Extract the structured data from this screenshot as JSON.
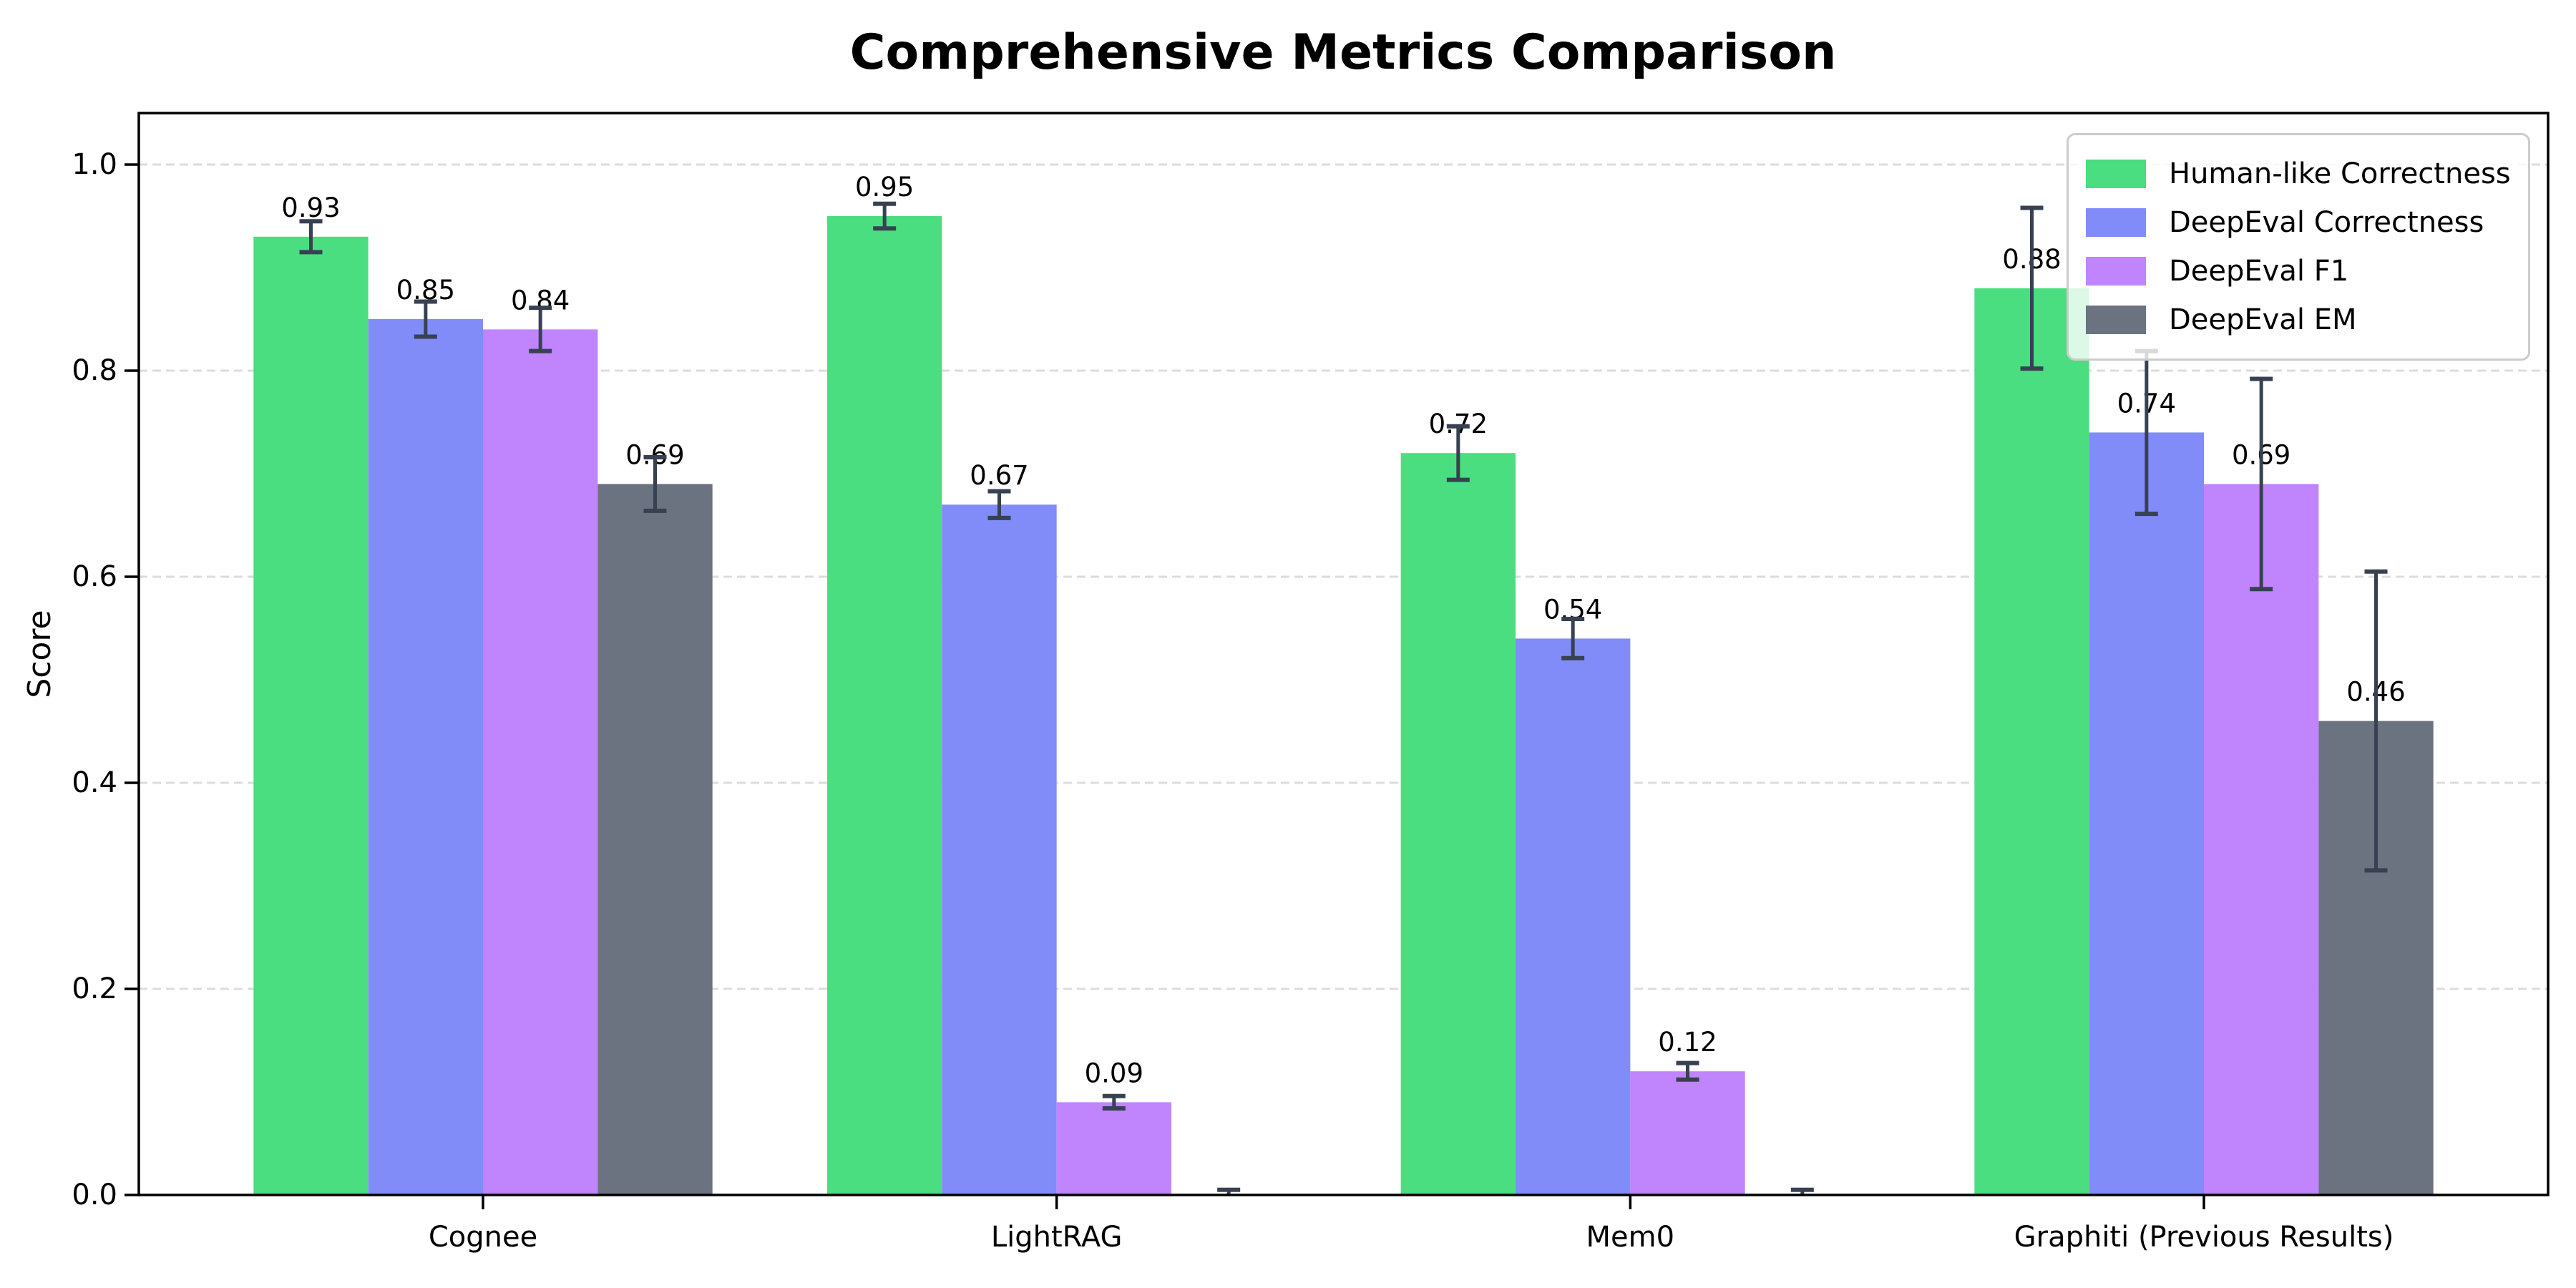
{
  "chart_data": {
    "type": "bar",
    "title": "Comprehensive Metrics Comparison",
    "ylabel": "Score",
    "xlabel": "",
    "categories": [
      "Cognee",
      "LightRAG",
      "Mem0",
      "Graphiti (Previous Results)"
    ],
    "series": [
      {
        "name": "Human-like Correctness",
        "color": "#4ade80",
        "values": [
          0.93,
          0.95,
          0.72,
          0.88
        ],
        "errors": [
          0.015,
          0.012,
          0.026,
          0.078
        ],
        "labels": [
          "0.93",
          "0.95",
          "0.72",
          "0.88"
        ]
      },
      {
        "name": "DeepEval Correctness",
        "color": "#818cf8",
        "values": [
          0.85,
          0.67,
          0.54,
          0.74
        ],
        "errors": [
          0.017,
          0.013,
          0.019,
          0.079
        ],
        "labels": [
          "0.85",
          "0.67",
          "0.54",
          "0.74"
        ]
      },
      {
        "name": "DeepEval F1",
        "color": "#c084fc",
        "values": [
          0.84,
          0.09,
          0.12,
          0.69
        ],
        "errors": [
          0.021,
          0.006,
          0.008,
          0.102
        ],
        "labels": [
          "0.84",
          "0.09",
          "0.12",
          "0.69"
        ]
      },
      {
        "name": "DeepEval EM",
        "color": "#6b7280",
        "values": [
          0.69,
          0.0,
          0.0,
          0.46
        ],
        "errors": [
          0.026,
          0.005,
          0.005,
          0.145
        ],
        "labels": [
          "0.69",
          null,
          null,
          "0.46"
        ]
      }
    ],
    "bar_width": 0.2,
    "ylim": [
      0,
      1.05
    ],
    "yticks": [
      0.0,
      0.2,
      0.4,
      0.6,
      0.8,
      1.0
    ],
    "ytick_labels": [
      "0.0",
      "0.2",
      "0.4",
      "0.6",
      "0.8",
      "1.0"
    ],
    "grid": "horizontal-dashed",
    "legend_position": "upper-right"
  },
  "style": {
    "error_bar_color": "#374151",
    "grid_color": "#dcdcdc",
    "axis_color": "#000000",
    "legend_border_color": "#cccccc",
    "background": "#ffffff"
  }
}
